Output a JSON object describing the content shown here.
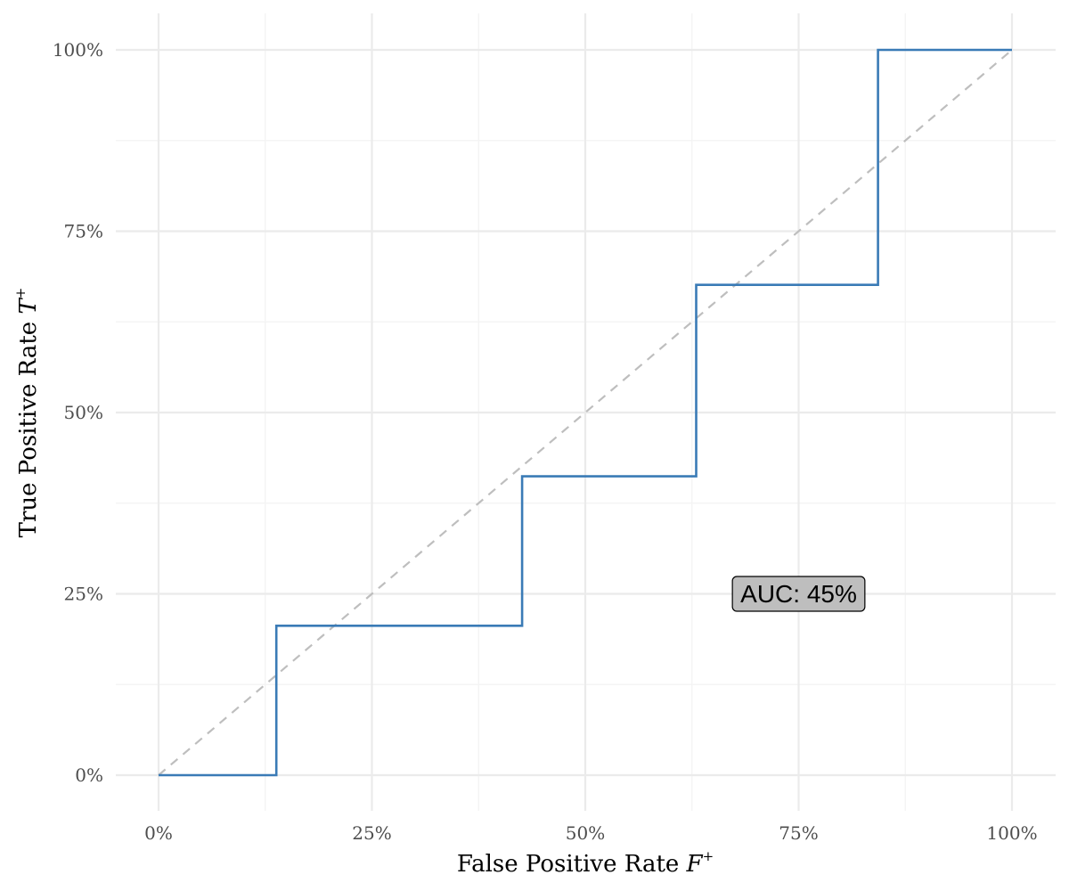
{
  "chart_data": {
    "type": "line",
    "xlabel": "False Positive Rate ",
    "xlabel_symbol": "F",
    "xlabel_sup": "+",
    "ylabel": "True Positive Rate ",
    "ylabel_symbol": "T",
    "ylabel_sup": "+",
    "xlim": [
      0,
      1
    ],
    "ylim": [
      0,
      1
    ],
    "x_ticks": [
      0,
      0.25,
      0.5,
      0.75,
      1.0
    ],
    "x_tick_labels": [
      "0%",
      "25%",
      "50%",
      "75%",
      "100%"
    ],
    "y_ticks": [
      0,
      0.25,
      0.5,
      0.75,
      1.0
    ],
    "y_tick_labels": [
      "0%",
      "25%",
      "50%",
      "75%",
      "100%"
    ],
    "grid": true,
    "series": [
      {
        "style": "step",
        "color": "#3a7bb6",
        "x": [
          0,
          0.138,
          0.138,
          0.426,
          0.426,
          0.63,
          0.63,
          0.843,
          0.843,
          1.0
        ],
        "y": [
          0,
          0,
          0.206,
          0.206,
          0.412,
          0.412,
          0.676,
          0.676,
          1.0,
          1.0
        ]
      },
      {
        "style": "dashed",
        "color": "#bebebe",
        "x": [
          0,
          1
        ],
        "y": [
          0,
          1
        ]
      }
    ],
    "annotation": {
      "text": "AUC:  45%",
      "x": 0.75,
      "y": 0.25
    }
  }
}
